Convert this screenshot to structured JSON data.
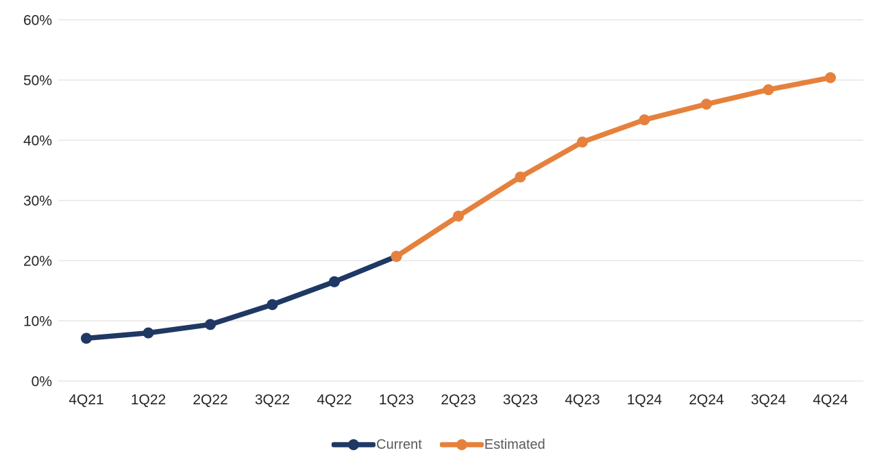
{
  "chart_data": {
    "type": "line",
    "categories": [
      "4Q21",
      "1Q22",
      "2Q22",
      "3Q22",
      "4Q22",
      "1Q23",
      "2Q23",
      "3Q23",
      "4Q23",
      "1Q24",
      "2Q24",
      "3Q24",
      "4Q24"
    ],
    "series": [
      {
        "name": "Current",
        "color": "#1F3864",
        "values": [
          7.1,
          8.0,
          9.4,
          12.7,
          16.5,
          20.7,
          null,
          null,
          null,
          null,
          null,
          null,
          null
        ]
      },
      {
        "name": "Estimated",
        "color": "#E5813C",
        "values": [
          null,
          null,
          null,
          null,
          null,
          20.7,
          27.4,
          33.9,
          39.7,
          43.4,
          46.0,
          48.4,
          50.4
        ]
      }
    ],
    "title": "",
    "xlabel": "",
    "ylabel": "",
    "ylim": [
      0,
      60
    ],
    "yticks": [
      {
        "label": "0%",
        "value": 0
      },
      {
        "label": "10%",
        "value": 10
      },
      {
        "label": "20%",
        "value": 20
      },
      {
        "label": "30%",
        "value": 30
      },
      {
        "label": "40%",
        "value": 40
      },
      {
        "label": "50%",
        "value": 50
      },
      {
        "label": "60%",
        "value": 60
      }
    ],
    "grid": "horizontal",
    "gridline_color": "#D9D9D9",
    "axis_text_color": "#262626",
    "legend": {
      "position": "bottom",
      "text_color": "#595959"
    }
  }
}
